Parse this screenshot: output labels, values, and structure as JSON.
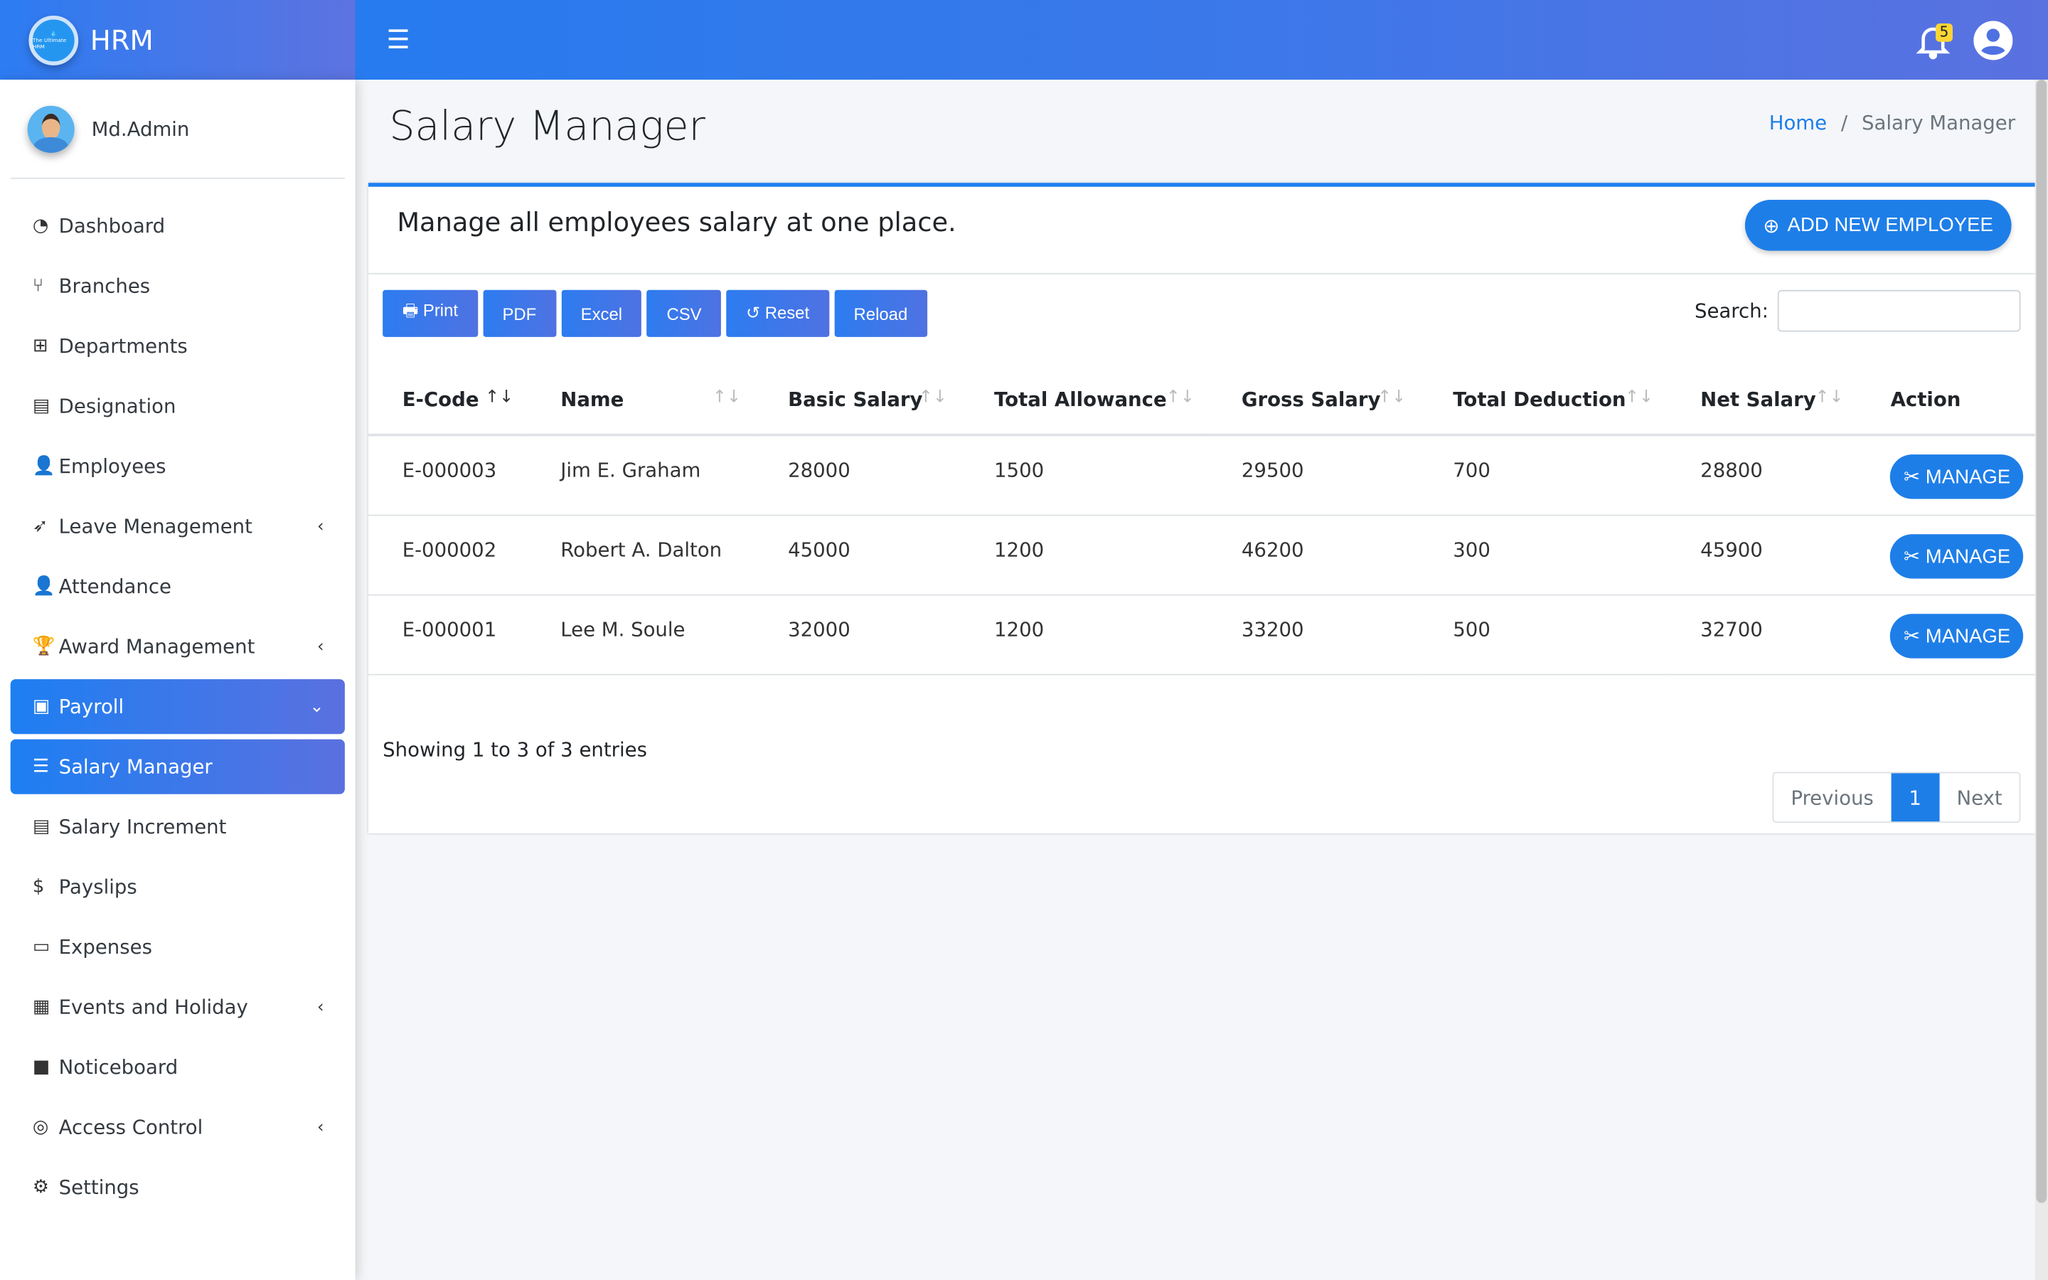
{
  "brand": {
    "name": "HRM",
    "logo_text": "The Ultimate HRM"
  },
  "header": {
    "notification_count": "5"
  },
  "user": {
    "name": "Md.Admin"
  },
  "sidebar": {
    "items": [
      {
        "label": "Dashboard",
        "icon": "tachometer-icon"
      },
      {
        "label": "Branches",
        "icon": "code-branch-icon"
      },
      {
        "label": "Departments",
        "icon": "sitemap-icon"
      },
      {
        "label": "Designation",
        "icon": "id-card-icon"
      },
      {
        "label": "Employees",
        "icon": "user-tie-icon"
      },
      {
        "label": "Leave Menagement",
        "icon": "rocket-icon",
        "chevron": "left"
      },
      {
        "label": "Attendance",
        "icon": "user-check-icon"
      },
      {
        "label": "Award Management",
        "icon": "trophy-icon",
        "chevron": "left"
      },
      {
        "label": "Payroll",
        "icon": "money-bill-icon",
        "chevron": "down",
        "active": true
      },
      {
        "label": "Salary Manager",
        "icon": "bars-icon",
        "active": true
      },
      {
        "label": "Salary Increment",
        "icon": "file-icon"
      },
      {
        "label": "Payslips",
        "icon": "hand-dollar-icon"
      },
      {
        "label": "Expenses",
        "icon": "credit-card-icon"
      },
      {
        "label": "Events and Holiday",
        "icon": "calendar-check-icon",
        "chevron": "left"
      },
      {
        "label": "Noticeboard",
        "icon": "sticky-note-icon"
      },
      {
        "label": "Access Control",
        "icon": "fingerprint-icon",
        "chevron": "left"
      },
      {
        "label": "Settings",
        "icon": "cog-icon"
      }
    ]
  },
  "page": {
    "title": "Salary Manager",
    "breadcrumb": {
      "home": "Home",
      "separator": "/",
      "current": "Salary Manager"
    }
  },
  "card": {
    "title": "Manage all employees salary at one place.",
    "add_button": "ADD NEW EMPLOYEE"
  },
  "toolbar": {
    "print": "Print",
    "pdf": "PDF",
    "excel": "Excel",
    "csv": "CSV",
    "reset": "Reset",
    "reload": "Reload"
  },
  "search": {
    "label": "Search:",
    "value": ""
  },
  "table": {
    "columns": [
      "E-Code",
      "Name",
      "Basic Salary",
      "Total Allowance",
      "Gross Salary",
      "Total Deduction",
      "Net Salary",
      "Action"
    ],
    "rows": [
      [
        "E-000003",
        "Jim E. Graham",
        "28000",
        "1500",
        "29500",
        "700",
        "28800"
      ],
      [
        "E-000002",
        "Robert A. Dalton",
        "45000",
        "1200",
        "46200",
        "300",
        "45900"
      ],
      [
        "E-000001",
        "Lee M. Soule",
        "32000",
        "1200",
        "33200",
        "500",
        "32700"
      ]
    ],
    "action_label": "MANAGE"
  },
  "footer": {
    "info": "Showing 1 to 3 of 3 entries",
    "previous": "Previous",
    "page": "1",
    "next": "Next"
  },
  "colors": {
    "primary": "#1e7ee8",
    "gradient_end": "#5a70e0",
    "badge": "#fcd535"
  }
}
